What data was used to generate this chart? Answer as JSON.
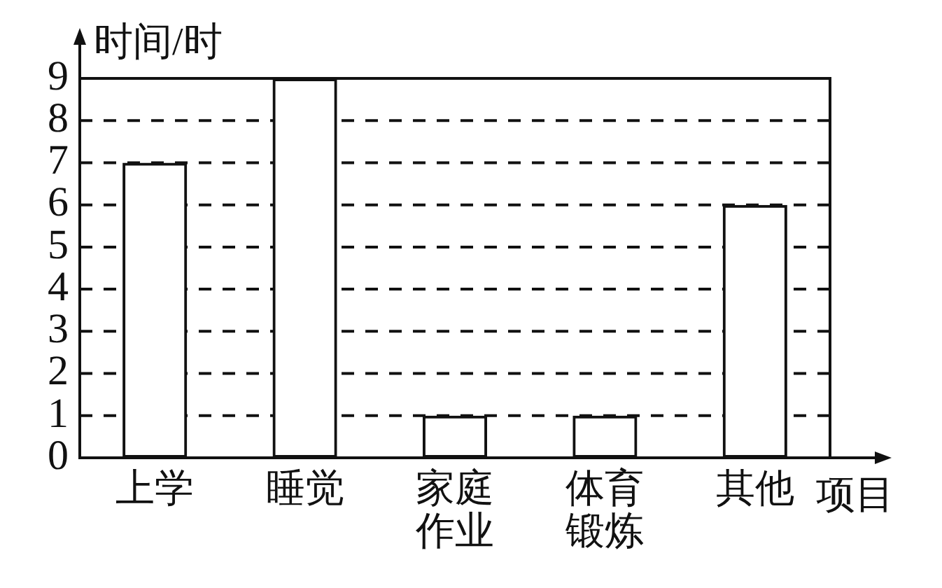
{
  "chart_data": {
    "type": "bar",
    "xlabel": "项目",
    "ylabel": "时间/时",
    "categories": [
      "上学",
      "睡觉",
      "家庭作业",
      "体育锻炼",
      "其他"
    ],
    "values": [
      7,
      9,
      1,
      1,
      6
    ],
    "color": "#111111",
    "ylim": [
      0,
      9
    ],
    "yticks": [
      0,
      1,
      2,
      3,
      4,
      5,
      6,
      7,
      8,
      9
    ],
    "grid": "y"
  }
}
